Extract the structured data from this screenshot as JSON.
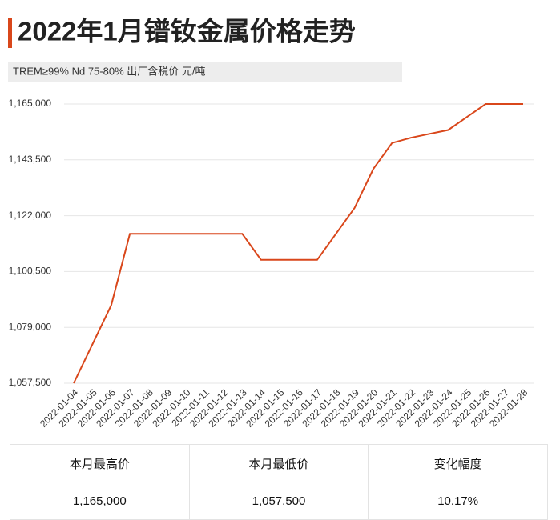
{
  "chart_data": {
    "type": "line",
    "title": "2022年1月镨钕金属价格走势",
    "subtitle": "TREM≥99% Nd 75-80%  出厂含税价 元/吨",
    "categories": [
      "2022-01-04",
      "2022-01-05",
      "2022-01-06",
      "2022-01-07",
      "2022-01-08",
      "2022-01-09",
      "2022-01-10",
      "2022-01-11",
      "2022-01-12",
      "2022-01-13",
      "2022-01-14",
      "2022-01-15",
      "2022-01-16",
      "2022-01-17",
      "2022-01-18",
      "2022-01-19",
      "2022-01-20",
      "2022-01-21",
      "2022-01-22",
      "2022-01-23",
      "2022-01-24",
      "2022-01-25",
      "2022-01-26",
      "2022-01-27",
      "2022-01-28"
    ],
    "values": [
      1057500,
      1072500,
      1087500,
      1115000,
      1115000,
      1115000,
      1115000,
      1115000,
      1115000,
      1115000,
      1105000,
      1105000,
      1105000,
      1105000,
      1115000,
      1125000,
      1140000,
      1150000,
      1152000,
      1153500,
      1155000,
      1160000,
      1165000,
      1165000,
      1165000
    ],
    "color": "#d9471b",
    "ylim": [
      1057500,
      1165000
    ],
    "yticks": [
      {
        "value": 1057500,
        "label": "1,057,500"
      },
      {
        "value": 1079000,
        "label": "1,079,000"
      },
      {
        "value": 1100500,
        "label": "1,100,500"
      },
      {
        "value": 1122000,
        "label": "1,122,000"
      },
      {
        "value": 1143500,
        "label": "1,143,500"
      },
      {
        "value": 1165000,
        "label": "1,165,000"
      }
    ],
    "grid": true
  },
  "table": {
    "headers": [
      "本月最高价",
      "本月最低价",
      "变化幅度"
    ],
    "rows": [
      [
        "1,165,000",
        "1,057,500",
        "10.17%"
      ]
    ]
  }
}
